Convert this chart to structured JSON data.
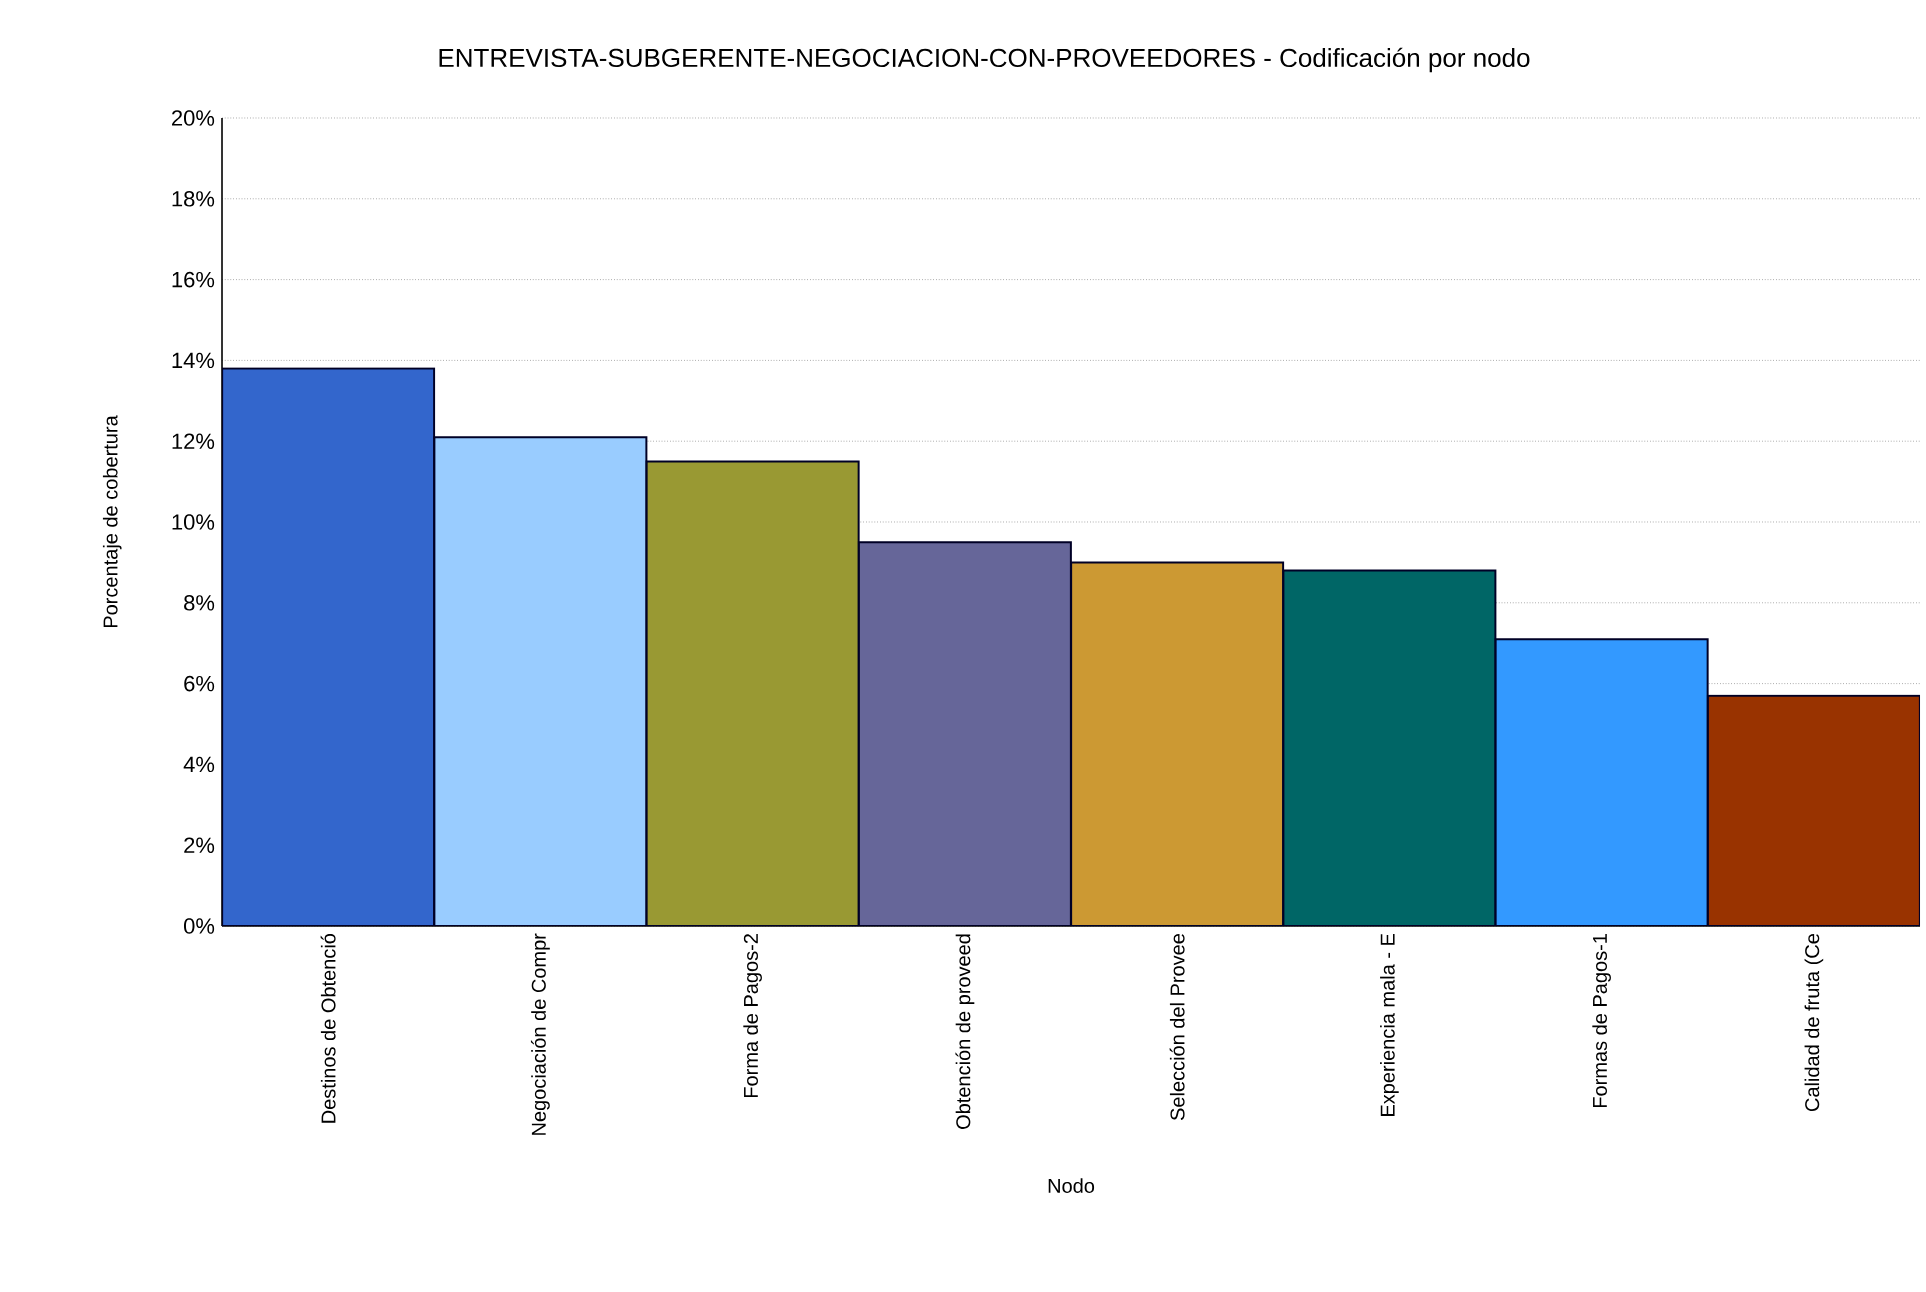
{
  "chart_data": {
    "type": "bar",
    "title": "ENTREVISTA-SUBGERENTE-NEGOCIACION-CON-PROVEEDORES - Codificación por nodo",
    "xlabel": "Nodo",
    "ylabel": "Porcentaje de cobertura",
    "categories": [
      "Destinos de Obtenció",
      "Negociación de Compr",
      "Forma de Pagos-2",
      "Obtención de proveed",
      "Selección del Provee",
      "Experiencia mala - E",
      "Formas de Pagos-1",
      "Calidad de fruta (Ce"
    ],
    "values": [
      13.8,
      12.1,
      11.5,
      9.5,
      9.0,
      8.8,
      7.1,
      5.7
    ],
    "colors": [
      "#3366cc",
      "#99ccff",
      "#999933",
      "#666699",
      "#cc9933",
      "#006666",
      "#3399ff",
      "#993300"
    ],
    "ylim": [
      0,
      20
    ],
    "yticks": [
      {
        "value": 0,
        "label": "0%"
      },
      {
        "value": 2,
        "label": "2%"
      },
      {
        "value": 4,
        "label": "4%"
      },
      {
        "value": 6,
        "label": "6%"
      },
      {
        "value": 8,
        "label": "8%"
      },
      {
        "value": 10,
        "label": "10%"
      },
      {
        "value": 12,
        "label": "12%"
      },
      {
        "value": 14,
        "label": "14%"
      },
      {
        "value": 16,
        "label": "16%"
      },
      {
        "value": 18,
        "label": "18%"
      },
      {
        "value": 20,
        "label": "20%"
      }
    ],
    "grid": "y"
  }
}
